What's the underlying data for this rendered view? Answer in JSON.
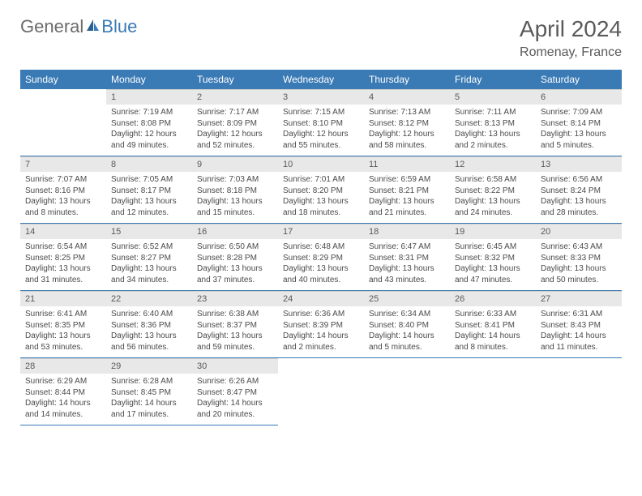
{
  "logo": {
    "part1": "General",
    "part2": "Blue"
  },
  "title": "April 2024",
  "location": "Romenay, France",
  "colors": {
    "header_bg": "#3a7ab5",
    "header_text": "#ffffff",
    "daynum_bg": "#e8e8e8",
    "text": "#4a4a4a",
    "border": "#3a7ab5",
    "background": "#ffffff"
  },
  "weekdays": [
    "Sunday",
    "Monday",
    "Tuesday",
    "Wednesday",
    "Thursday",
    "Friday",
    "Saturday"
  ],
  "weeks": [
    [
      null,
      {
        "n": "1",
        "sr": "7:19 AM",
        "ss": "8:08 PM",
        "dl": "12 hours and 49 minutes."
      },
      {
        "n": "2",
        "sr": "7:17 AM",
        "ss": "8:09 PM",
        "dl": "12 hours and 52 minutes."
      },
      {
        "n": "3",
        "sr": "7:15 AM",
        "ss": "8:10 PM",
        "dl": "12 hours and 55 minutes."
      },
      {
        "n": "4",
        "sr": "7:13 AM",
        "ss": "8:12 PM",
        "dl": "12 hours and 58 minutes."
      },
      {
        "n": "5",
        "sr": "7:11 AM",
        "ss": "8:13 PM",
        "dl": "13 hours and 2 minutes."
      },
      {
        "n": "6",
        "sr": "7:09 AM",
        "ss": "8:14 PM",
        "dl": "13 hours and 5 minutes."
      }
    ],
    [
      {
        "n": "7",
        "sr": "7:07 AM",
        "ss": "8:16 PM",
        "dl": "13 hours and 8 minutes."
      },
      {
        "n": "8",
        "sr": "7:05 AM",
        "ss": "8:17 PM",
        "dl": "13 hours and 12 minutes."
      },
      {
        "n": "9",
        "sr": "7:03 AM",
        "ss": "8:18 PM",
        "dl": "13 hours and 15 minutes."
      },
      {
        "n": "10",
        "sr": "7:01 AM",
        "ss": "8:20 PM",
        "dl": "13 hours and 18 minutes."
      },
      {
        "n": "11",
        "sr": "6:59 AM",
        "ss": "8:21 PM",
        "dl": "13 hours and 21 minutes."
      },
      {
        "n": "12",
        "sr": "6:58 AM",
        "ss": "8:22 PM",
        "dl": "13 hours and 24 minutes."
      },
      {
        "n": "13",
        "sr": "6:56 AM",
        "ss": "8:24 PM",
        "dl": "13 hours and 28 minutes."
      }
    ],
    [
      {
        "n": "14",
        "sr": "6:54 AM",
        "ss": "8:25 PM",
        "dl": "13 hours and 31 minutes."
      },
      {
        "n": "15",
        "sr": "6:52 AM",
        "ss": "8:27 PM",
        "dl": "13 hours and 34 minutes."
      },
      {
        "n": "16",
        "sr": "6:50 AM",
        "ss": "8:28 PM",
        "dl": "13 hours and 37 minutes."
      },
      {
        "n": "17",
        "sr": "6:48 AM",
        "ss": "8:29 PM",
        "dl": "13 hours and 40 minutes."
      },
      {
        "n": "18",
        "sr": "6:47 AM",
        "ss": "8:31 PM",
        "dl": "13 hours and 43 minutes."
      },
      {
        "n": "19",
        "sr": "6:45 AM",
        "ss": "8:32 PM",
        "dl": "13 hours and 47 minutes."
      },
      {
        "n": "20",
        "sr": "6:43 AM",
        "ss": "8:33 PM",
        "dl": "13 hours and 50 minutes."
      }
    ],
    [
      {
        "n": "21",
        "sr": "6:41 AM",
        "ss": "8:35 PM",
        "dl": "13 hours and 53 minutes."
      },
      {
        "n": "22",
        "sr": "6:40 AM",
        "ss": "8:36 PM",
        "dl": "13 hours and 56 minutes."
      },
      {
        "n": "23",
        "sr": "6:38 AM",
        "ss": "8:37 PM",
        "dl": "13 hours and 59 minutes."
      },
      {
        "n": "24",
        "sr": "6:36 AM",
        "ss": "8:39 PM",
        "dl": "14 hours and 2 minutes."
      },
      {
        "n": "25",
        "sr": "6:34 AM",
        "ss": "8:40 PM",
        "dl": "14 hours and 5 minutes."
      },
      {
        "n": "26",
        "sr": "6:33 AM",
        "ss": "8:41 PM",
        "dl": "14 hours and 8 minutes."
      },
      {
        "n": "27",
        "sr": "6:31 AM",
        "ss": "8:43 PM",
        "dl": "14 hours and 11 minutes."
      }
    ],
    [
      {
        "n": "28",
        "sr": "6:29 AM",
        "ss": "8:44 PM",
        "dl": "14 hours and 14 minutes."
      },
      {
        "n": "29",
        "sr": "6:28 AM",
        "ss": "8:45 PM",
        "dl": "14 hours and 17 minutes."
      },
      {
        "n": "30",
        "sr": "6:26 AM",
        "ss": "8:47 PM",
        "dl": "14 hours and 20 minutes."
      },
      null,
      null,
      null,
      null
    ]
  ],
  "labels": {
    "sunrise": "Sunrise:",
    "sunset": "Sunset:",
    "daylight": "Daylight:"
  }
}
